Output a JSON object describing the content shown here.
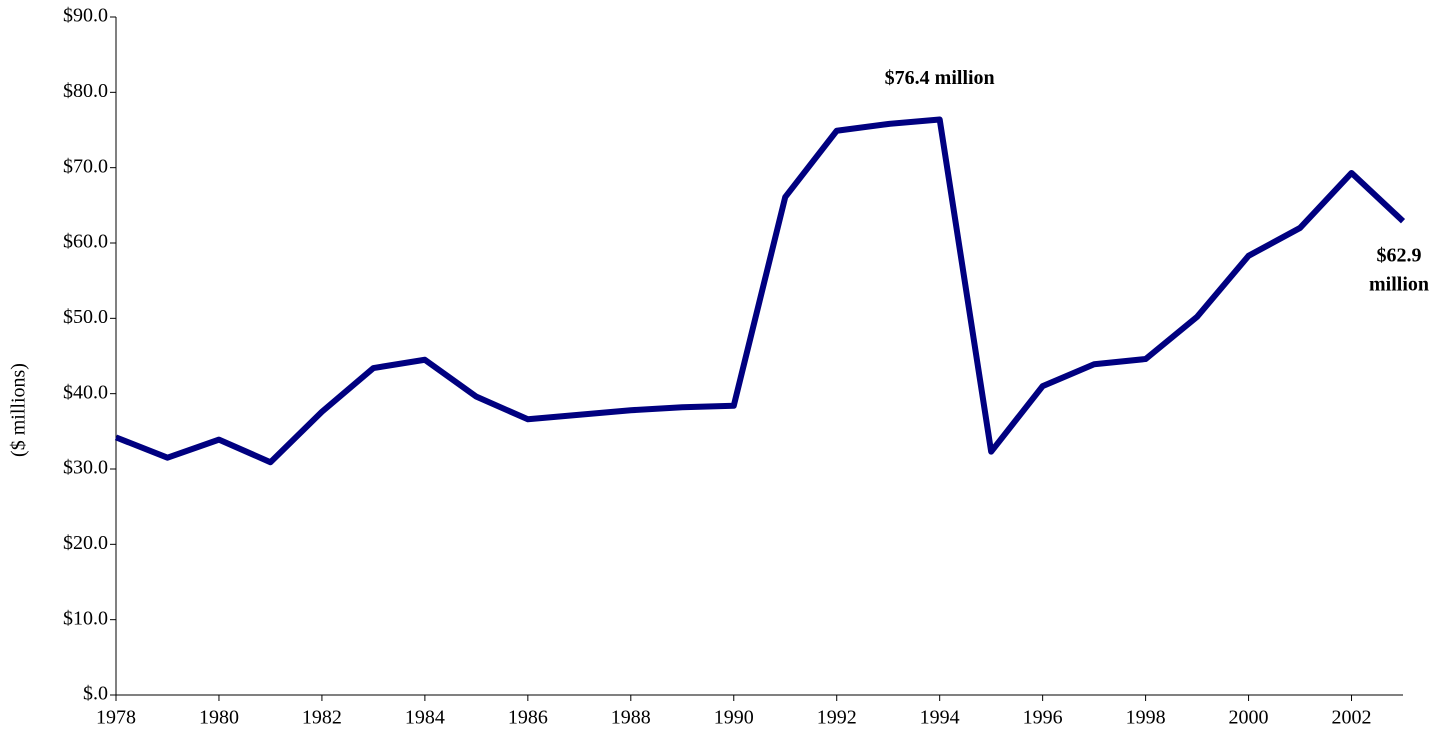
{
  "chart_data": {
    "type": "line",
    "y_label": "($ millions)",
    "x": [
      1978,
      1979,
      1980,
      1981,
      1982,
      1983,
      1984,
      1985,
      1986,
      1987,
      1988,
      1989,
      1990,
      1991,
      1992,
      1993,
      1994,
      1995,
      1996,
      1997,
      1998,
      1999,
      2000,
      2001,
      2002,
      2003
    ],
    "series": [
      {
        "color": "#000080",
        "values": [
          34.2,
          31.5,
          33.9,
          30.9,
          37.6,
          43.4,
          44.5,
          39.6,
          36.6,
          37.2,
          37.8,
          38.2,
          38.4,
          66.1,
          74.9,
          75.8,
          76.4,
          32.3,
          41.0,
          43.9,
          44.6,
          50.2,
          58.3,
          62.0,
          69.3,
          62.9
        ]
      }
    ],
    "xlim": [
      1978,
      2003
    ],
    "xticks": [
      1978,
      1980,
      1982,
      1984,
      1986,
      1988,
      1990,
      1992,
      1994,
      1996,
      1998,
      2000,
      2002
    ],
    "ylim": [
      0,
      90
    ],
    "yticks": [
      {
        "value": 0,
        "label": "$.0"
      },
      {
        "value": 10,
        "label": "$10.0"
      },
      {
        "value": 20,
        "label": "$20.0"
      },
      {
        "value": 30,
        "label": "$30.0"
      },
      {
        "value": 40,
        "label": "$40.0"
      },
      {
        "value": 50,
        "label": "$50.0"
      },
      {
        "value": 60,
        "label": "$60.0"
      },
      {
        "value": 70,
        "label": "$70.0"
      },
      {
        "value": 80,
        "label": "$80.0"
      },
      {
        "value": 90,
        "label": "$90.0"
      }
    ],
    "grid": false,
    "annotations": [
      {
        "lines": [
          "$76.4 million"
        ],
        "x": 1994,
        "y": 76.4
      },
      {
        "lines": [
          "$62.9",
          "million"
        ],
        "x": 2003,
        "y": 62.9
      }
    ]
  }
}
